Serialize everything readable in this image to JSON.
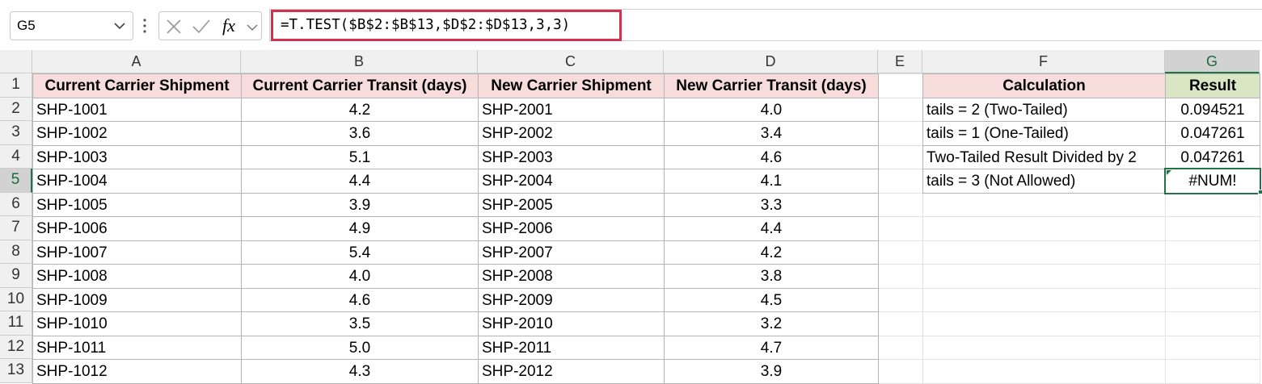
{
  "name_box": "G5",
  "fx_label": "fx",
  "formula": "=T.TEST($B$2:$B$13,$D$2:$D$13,3,3)",
  "sheet": {
    "columns": [
      "A",
      "B",
      "C",
      "D",
      "E",
      "F",
      "G"
    ],
    "row_numbers": [
      1,
      2,
      3,
      4,
      5,
      6,
      7,
      8,
      9,
      10,
      11,
      12,
      13
    ],
    "data_header": [
      "Current Carrier Shipment",
      "Current Carrier Transit (days)",
      "New Carrier Shipment",
      "New Carrier Transit (days)"
    ],
    "data_rows": [
      [
        "SHP-1001",
        "4.2",
        "SHP-2001",
        "4.0"
      ],
      [
        "SHP-1002",
        "3.6",
        "SHP-2002",
        "3.4"
      ],
      [
        "SHP-1003",
        "5.1",
        "SHP-2003",
        "4.6"
      ],
      [
        "SHP-1004",
        "4.4",
        "SHP-2004",
        "4.1"
      ],
      [
        "SHP-1005",
        "3.9",
        "SHP-2005",
        "3.3"
      ],
      [
        "SHP-1006",
        "4.9",
        "SHP-2006",
        "4.4"
      ],
      [
        "SHP-1007",
        "5.4",
        "SHP-2007",
        "4.2"
      ],
      [
        "SHP-1008",
        "4.0",
        "SHP-2008",
        "3.8"
      ],
      [
        "SHP-1009",
        "4.6",
        "SHP-2009",
        "4.5"
      ],
      [
        "SHP-1010",
        "3.5",
        "SHP-2010",
        "3.2"
      ],
      [
        "SHP-1011",
        "5.0",
        "SHP-2011",
        "4.7"
      ],
      [
        "SHP-1012",
        "4.3",
        "SHP-2012",
        "3.9"
      ]
    ],
    "calc_header": [
      "Calculation",
      "Result"
    ],
    "calc_rows": [
      [
        "tails = 2 (Two-Tailed)",
        "0.094521"
      ],
      [
        "tails = 1 (One-Tailed)",
        "0.047261"
      ],
      [
        "Two-Tailed Result Divided by 2",
        "0.047261"
      ],
      [
        "tails = 3 (Not Allowed)",
        "#NUM!"
      ]
    ]
  }
}
